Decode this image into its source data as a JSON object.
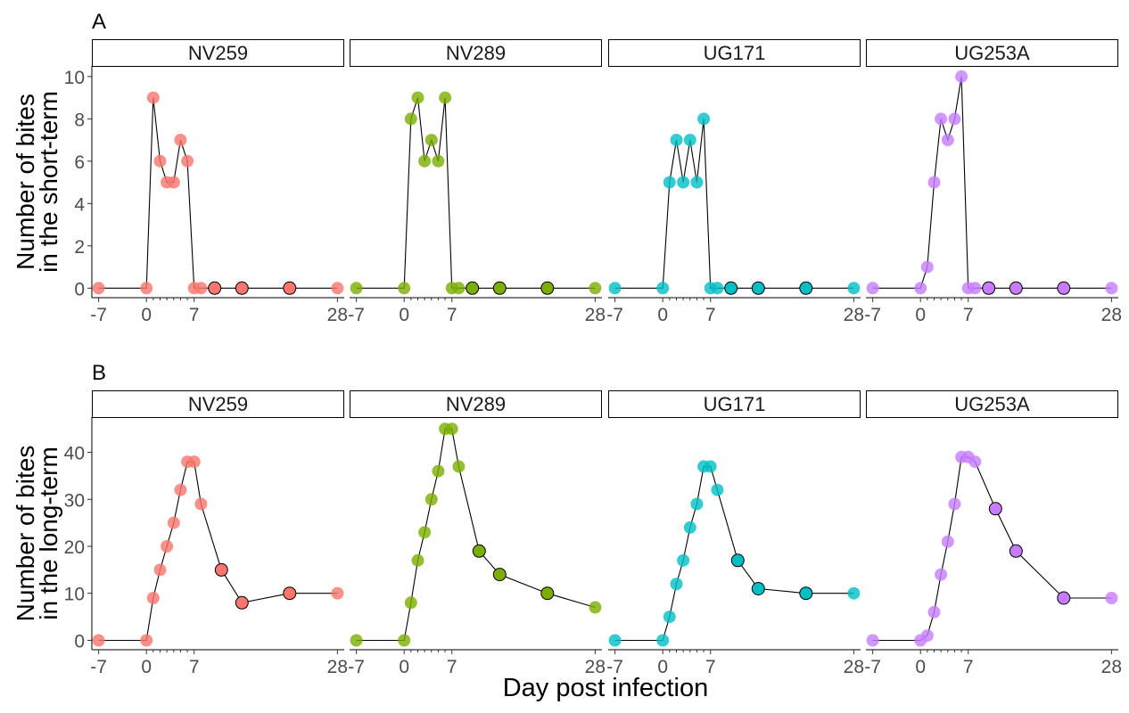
{
  "figure": {
    "x_axis_title": "Day post infection"
  },
  "chart_data": [
    {
      "type": "line",
      "panel_label": "A",
      "ylabel": [
        "Number of bites",
        "in the short-term"
      ],
      "xlim": [
        -8,
        29
      ],
      "ylim": [
        -0.45,
        10.5
      ],
      "x_ticks": [
        -7,
        0,
        7,
        28
      ],
      "x_minor_ticks": [
        1,
        2,
        3,
        4,
        5,
        6
      ],
      "y_ticks": [
        0,
        2,
        4,
        6,
        8,
        10
      ],
      "facets": [
        {
          "name": "NV259",
          "color": "#F8766D",
          "x": [
            -7,
            0,
            1,
            2,
            3,
            4,
            5,
            6,
            7,
            8,
            10,
            14,
            21,
            28
          ],
          "y": [
            0,
            0,
            9,
            6,
            5,
            5,
            7,
            6,
            0,
            0,
            0,
            0,
            0,
            0
          ],
          "outlined": [
            false,
            false,
            false,
            false,
            false,
            false,
            false,
            false,
            false,
            false,
            true,
            true,
            true,
            false
          ]
        },
        {
          "name": "NV289",
          "color": "#7CAE00",
          "x": [
            -7,
            0,
            1,
            2,
            3,
            4,
            5,
            6,
            7,
            8,
            10,
            14,
            21,
            28
          ],
          "y": [
            0,
            0,
            8,
            9,
            6,
            7,
            6,
            9,
            0,
            0,
            0,
            0,
            0,
            0
          ],
          "outlined": [
            false,
            false,
            false,
            false,
            false,
            false,
            false,
            false,
            false,
            false,
            true,
            true,
            true,
            false
          ]
        },
        {
          "name": "UG171",
          "color": "#00BFC4",
          "x": [
            -7,
            0,
            1,
            2,
            3,
            4,
            5,
            6,
            7,
            8,
            10,
            14,
            21,
            28
          ],
          "y": [
            0,
            0,
            5,
            7,
            5,
            7,
            5,
            8,
            0,
            0,
            0,
            0,
            0,
            0
          ],
          "outlined": [
            false,
            false,
            false,
            false,
            false,
            false,
            false,
            false,
            false,
            false,
            true,
            true,
            true,
            false
          ]
        },
        {
          "name": "UG253A",
          "color": "#C77CFF",
          "x": [
            -7,
            0,
            1,
            2,
            3,
            4,
            5,
            6,
            7,
            8,
            10,
            14,
            21,
            28
          ],
          "y": [
            0,
            0,
            1,
            5,
            8,
            7,
            8,
            10,
            0,
            0,
            0,
            0,
            0,
            0
          ],
          "outlined": [
            false,
            false,
            false,
            false,
            false,
            false,
            false,
            false,
            false,
            false,
            true,
            true,
            true,
            false
          ]
        }
      ]
    },
    {
      "type": "line",
      "panel_label": "B",
      "ylabel": [
        "Number of bites",
        "in the long-term"
      ],
      "xlim": [
        -8,
        29
      ],
      "ylim": [
        -2,
        47.5
      ],
      "x_ticks": [
        -7,
        0,
        7,
        28
      ],
      "x_minor_ticks": [
        1,
        2,
        3,
        4,
        5,
        6
      ],
      "y_ticks": [
        0,
        10,
        20,
        30,
        40
      ],
      "facets": [
        {
          "name": "NV259",
          "color": "#F8766D",
          "x": [
            -7,
            0,
            1,
            2,
            3,
            4,
            5,
            6,
            7,
            8,
            11,
            14,
            21,
            28
          ],
          "y": [
            0,
            0,
            9,
            15,
            20,
            25,
            32,
            38,
            38,
            29,
            15,
            8,
            10,
            10
          ],
          "outlined": [
            false,
            false,
            false,
            false,
            false,
            false,
            false,
            false,
            false,
            false,
            true,
            true,
            true,
            false
          ]
        },
        {
          "name": "NV289",
          "color": "#7CAE00",
          "x": [
            -7,
            0,
            1,
            2,
            3,
            4,
            5,
            6,
            7,
            8,
            11,
            14,
            21,
            28
          ],
          "y": [
            0,
            0,
            8,
            17,
            23,
            30,
            36,
            45,
            45,
            37,
            19,
            14,
            10,
            7
          ],
          "outlined": [
            false,
            false,
            false,
            false,
            false,
            false,
            false,
            false,
            false,
            false,
            true,
            true,
            true,
            false
          ]
        },
        {
          "name": "UG171",
          "color": "#00BFC4",
          "x": [
            -7,
            0,
            1,
            2,
            3,
            4,
            5,
            6,
            7,
            8,
            11,
            14,
            21,
            28
          ],
          "y": [
            0,
            0,
            5,
            12,
            17,
            24,
            29,
            37,
            37,
            32,
            17,
            11,
            10,
            10
          ],
          "outlined": [
            false,
            false,
            false,
            false,
            false,
            false,
            false,
            false,
            false,
            false,
            true,
            true,
            true,
            false
          ]
        },
        {
          "name": "UG253A",
          "color": "#C77CFF",
          "x": [
            -7,
            0,
            1,
            2,
            3,
            4,
            5,
            6,
            7,
            8,
            11,
            14,
            21,
            28
          ],
          "y": [
            0,
            0,
            1,
            6,
            14,
            21,
            29,
            39,
            39,
            38,
            28,
            19,
            9,
            9
          ],
          "outlined": [
            false,
            false,
            false,
            false,
            false,
            false,
            false,
            false,
            false,
            false,
            true,
            true,
            true,
            false
          ]
        }
      ]
    }
  ]
}
